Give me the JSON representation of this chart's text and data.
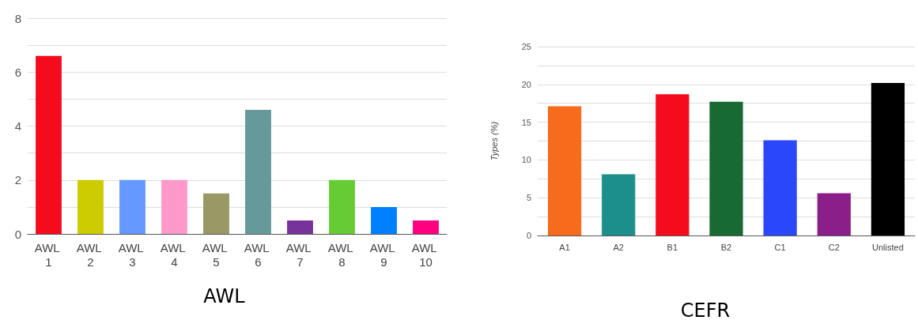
{
  "chart_data": [
    {
      "type": "bar",
      "title": "AWL",
      "categories": [
        "AWL 1",
        "AWL 2",
        "AWL 3",
        "AWL 4",
        "AWL 5",
        "AWL 6",
        "AWL 7",
        "AWL 8",
        "AWL 9",
        "AWL 10"
      ],
      "values": [
        6.6,
        2,
        2,
        2,
        1.5,
        4.6,
        0.5,
        2,
        1,
        0.5
      ],
      "colors": [
        "#f50c1c",
        "#cccc00",
        "#6699ff",
        "#ff99cc",
        "#999966",
        "#669999",
        "#773399",
        "#66cc33",
        "#0080ff",
        "#ff0080"
      ],
      "ylim": [
        0,
        8
      ],
      "yticks": [
        0,
        {
          "value": 1,
          "label": null
        },
        2,
        {
          "value": 3,
          "label": null
        },
        4,
        {
          "value": 5,
          "label": null
        },
        6,
        {
          "value": 7,
          "label": null
        },
        8
      ],
      "grid": "y"
    },
    {
      "type": "bar",
      "title": "CEFR",
      "ylabel": "Types (%)",
      "categories": [
        "A1",
        "A2",
        "B1",
        "B2",
        "C1",
        "C2",
        "Unlisted"
      ],
      "values": [
        17.1,
        8.1,
        18.7,
        17.7,
        12.6,
        5.6,
        20.2
      ],
      "colors": [
        "#f76b1c",
        "#1c8f8c",
        "#f50c1c",
        "#176b32",
        "#2a47fa",
        "#8a1f8a",
        "#000000"
      ],
      "ylim": [
        0,
        25
      ],
      "yticks": [
        0,
        {
          "value": 2.5,
          "label": null
        },
        5,
        {
          "value": 7.5,
          "label": null
        },
        10,
        {
          "value": 12.5,
          "label": null
        },
        15,
        {
          "value": 17.5,
          "label": null
        },
        20,
        {
          "value": 22.5,
          "label": null
        },
        25
      ],
      "grid": "y"
    }
  ]
}
